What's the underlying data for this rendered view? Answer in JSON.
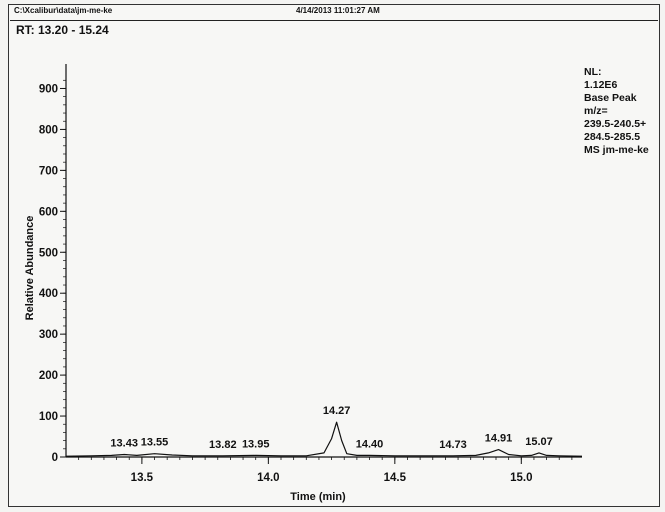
{
  "header": {
    "file_path": "C:\\Xcalibur\\data\\jm-me-ke",
    "timestamp": "4/14/2013 11:01:27 AM"
  },
  "range_label": "RT: 13.20 - 15.24",
  "info_block": {
    "lines": [
      "NL:",
      "1.12E6",
      "Base Peak",
      "m/z=",
      "239.5-240.5+",
      "284.5-285.5",
      "MS jm-me-ke"
    ]
  },
  "colors": {
    "trace": "#111111",
    "axis": "#111111",
    "background": "#f7f7f5"
  },
  "chart_data": {
    "type": "line",
    "title": "",
    "xlabel": "Time (min)",
    "ylabel": "Relative Abundance",
    "xlim": [
      13.2,
      15.24
    ],
    "ylim": [
      0,
      950
    ],
    "x_ticks": [
      13.5,
      14.0,
      14.5,
      15.0
    ],
    "x_tick_labels": [
      "13.5",
      "14.0",
      "14.5",
      "15.0"
    ],
    "y_ticks": [
      0,
      100,
      200,
      300,
      400,
      500,
      600,
      700,
      800,
      900
    ],
    "y_tick_labels": [
      "0",
      "100",
      "200",
      "300",
      "400",
      "500",
      "600",
      "700",
      "800",
      "900"
    ],
    "grid": false,
    "series": [
      {
        "x": [
          13.2,
          13.3,
          13.38,
          13.43,
          13.48,
          13.55,
          13.62,
          13.7,
          13.82,
          13.95,
          14.05,
          14.15,
          14.22,
          14.25,
          14.27,
          14.29,
          14.31,
          14.35,
          14.4,
          14.5,
          14.6,
          14.73,
          14.82,
          14.87,
          14.91,
          14.95,
          15.0,
          15.04,
          15.07,
          15.1,
          15.15,
          15.24
        ],
        "y": [
          2,
          3,
          4,
          6,
          4,
          8,
          5,
          3,
          3,
          4,
          3,
          3,
          10,
          45,
          85,
          40,
          8,
          4,
          4,
          3,
          3,
          3,
          4,
          10,
          18,
          6,
          3,
          4,
          10,
          4,
          3,
          2
        ]
      }
    ],
    "peak_labels": [
      {
        "text": "13.43",
        "x": 13.43,
        "y": 6
      },
      {
        "text": "13.55",
        "x": 13.55,
        "y": 8
      },
      {
        "text": "13.82",
        "x": 13.82,
        "y": 3
      },
      {
        "text": "13.95",
        "x": 13.95,
        "y": 4
      },
      {
        "text": "14.27",
        "x": 14.27,
        "y": 85
      },
      {
        "text": "14.40",
        "x": 14.4,
        "y": 4
      },
      {
        "text": "14.73",
        "x": 14.73,
        "y": 3
      },
      {
        "text": "14.91",
        "x": 14.91,
        "y": 18
      },
      {
        "text": "15.07",
        "x": 15.07,
        "y": 10
      }
    ]
  }
}
